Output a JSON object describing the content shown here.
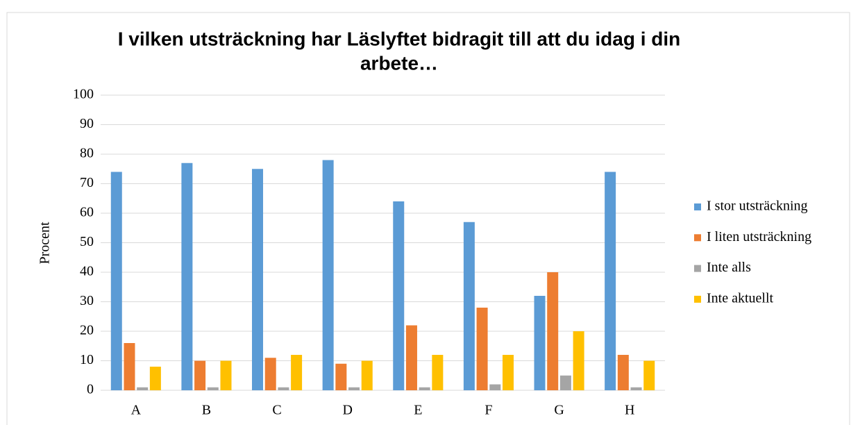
{
  "chart_data": {
    "type": "bar",
    "title": [
      "I vilken utsträckning har Läslyftet bidragit till att du idag i din",
      "arbete…"
    ],
    "y_label": "Procent",
    "categories": [
      "A",
      "B",
      "C",
      "D",
      "E",
      "F",
      "G",
      "H"
    ],
    "series": [
      {
        "name": "I stor utsträckning",
        "color": "#5b9bd5",
        "values": [
          74,
          77,
          75,
          78,
          64,
          57,
          32,
          74
        ]
      },
      {
        "name": "I liten utsträckning",
        "color": "#ed7d31",
        "values": [
          16,
          10,
          11,
          9,
          22,
          28,
          40,
          12
        ]
      },
      {
        "name": "Inte alls",
        "color": "#a5a5a5",
        "values": [
          1,
          1,
          1,
          1,
          1,
          2,
          5,
          1
        ]
      },
      {
        "name": "Inte aktuellt",
        "color": "#ffc000",
        "values": [
          8,
          10,
          12,
          10,
          12,
          12,
          20,
          10
        ]
      }
    ],
    "ylim": [
      0,
      100
    ],
    "yticks": [
      0,
      10,
      20,
      30,
      40,
      50,
      60,
      70,
      80,
      90,
      100
    ],
    "grid": true,
    "legend": "right"
  }
}
